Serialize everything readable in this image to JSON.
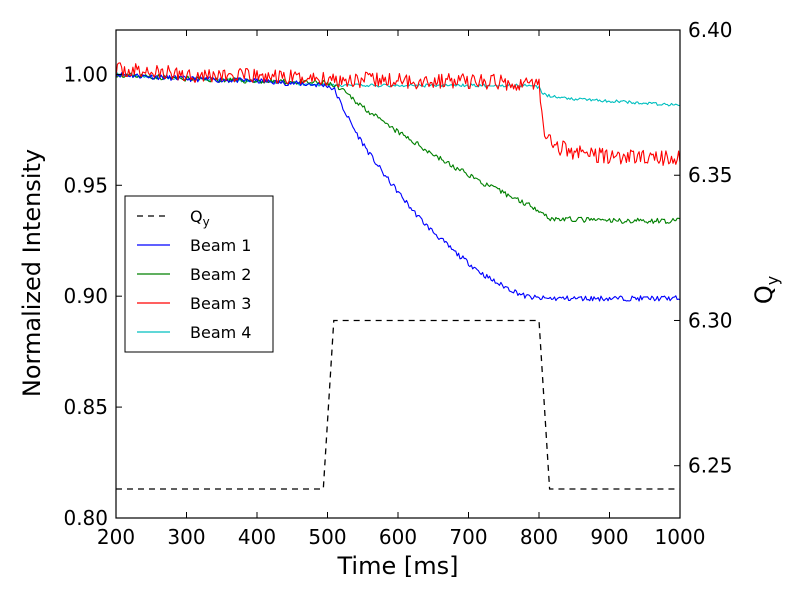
{
  "chart_data": {
    "type": "line",
    "title": "",
    "xlabel": "Time [ms]",
    "ylabel": "Normalized Intensity",
    "y2label": "Q",
    "y2label_sub": "y",
    "xlim": [
      200,
      1000
    ],
    "ylim": [
      0.8,
      1.02
    ],
    "y2lim": [
      6.232,
      6.4
    ],
    "x_ticks": [
      200,
      300,
      400,
      500,
      600,
      700,
      800,
      900,
      1000
    ],
    "y_ticks": [
      0.8,
      0.85,
      0.9,
      0.95,
      1.0
    ],
    "y2_ticks": [
      6.25,
      6.3,
      6.35,
      6.4
    ],
    "x_tick_labels": [
      "200",
      "300",
      "400",
      "500",
      "600",
      "700",
      "800",
      "900",
      "1000"
    ],
    "y_tick_labels": [
      "0.80",
      "0.85",
      "0.90",
      "0.95",
      "1.00"
    ],
    "y2_tick_labels": [
      "6.25",
      "6.30",
      "6.35",
      "6.40"
    ],
    "grid": false,
    "legend": {
      "position": "center-left",
      "entries": [
        {
          "label": "Q",
          "sub": "y",
          "style": "dashed",
          "color": "#000000"
        },
        {
          "label": "Beam 1",
          "style": "solid",
          "color": "#0000ff"
        },
        {
          "label": "Beam 2",
          "style": "solid",
          "color": "#008000"
        },
        {
          "label": "Beam 3",
          "style": "solid",
          "color": "#ff0000"
        },
        {
          "label": "Beam 4",
          "style": "solid",
          "color": "#00bfbf"
        }
      ]
    },
    "series": [
      {
        "name": "Beam 1",
        "color": "#0000ff",
        "axis": "left",
        "noise": 0.0012,
        "seed": 11,
        "x": [
          200,
          300,
          400,
          500,
          510,
          520,
          540,
          560,
          580,
          600,
          620,
          640,
          660,
          680,
          700,
          720,
          740,
          760,
          780,
          800,
          820,
          900,
          1000
        ],
        "y": [
          1.0,
          0.998,
          0.997,
          0.995,
          0.993,
          0.986,
          0.974,
          0.964,
          0.955,
          0.947,
          0.939,
          0.932,
          0.926,
          0.92,
          0.915,
          0.91,
          0.906,
          0.903,
          0.9,
          0.899,
          0.899,
          0.899,
          0.899
        ]
      },
      {
        "name": "Beam 2",
        "color": "#008000",
        "axis": "left",
        "noise": 0.0012,
        "seed": 23,
        "x": [
          200,
          300,
          400,
          500,
          520,
          540,
          560,
          580,
          600,
          620,
          640,
          660,
          680,
          700,
          720,
          740,
          760,
          780,
          800,
          815,
          900,
          1000
        ],
        "y": [
          1.0,
          0.998,
          0.997,
          0.996,
          0.993,
          0.988,
          0.983,
          0.978,
          0.974,
          0.97,
          0.966,
          0.962,
          0.958,
          0.955,
          0.951,
          0.948,
          0.945,
          0.942,
          0.939,
          0.935,
          0.934,
          0.934
        ]
      },
      {
        "name": "Beam 3",
        "color": "#ff0000",
        "axis": "left",
        "noise": 0.0035,
        "seed": 37,
        "x": [
          200,
          300,
          400,
          500,
          600,
          700,
          780,
          800,
          802,
          808,
          815,
          830,
          850,
          900,
          1000
        ],
        "y": [
          1.002,
          1.0,
          0.999,
          0.998,
          0.997,
          0.997,
          0.996,
          0.996,
          0.985,
          0.975,
          0.97,
          0.967,
          0.965,
          0.963,
          0.962
        ]
      },
      {
        "name": "Beam 4",
        "color": "#00bfbf",
        "axis": "left",
        "noise": 0.0007,
        "seed": 53,
        "x": [
          200,
          300,
          400,
          500,
          600,
          700,
          790,
          800,
          805,
          820,
          850,
          900,
          950,
          1000
        ],
        "y": [
          1.0,
          0.998,
          0.997,
          0.995,
          0.995,
          0.995,
          0.995,
          0.994,
          0.991,
          0.99,
          0.989,
          0.988,
          0.987,
          0.986
        ]
      },
      {
        "name": "Qy",
        "color": "#000000",
        "axis": "right",
        "style": "dashed",
        "x": [
          200,
          494,
          509,
          800,
          815,
          1000
        ],
        "y": [
          6.242,
          6.242,
          6.3,
          6.3,
          6.242,
          6.242
        ]
      }
    ]
  }
}
